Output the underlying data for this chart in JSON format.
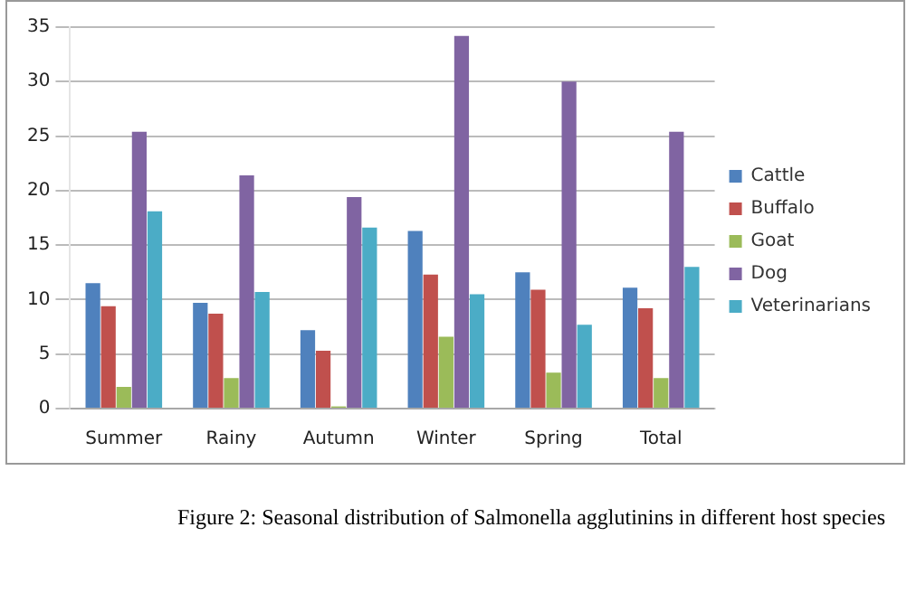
{
  "chart_data": {
    "type": "bar",
    "categories": [
      "Summer",
      "Rainy",
      "Autumn",
      "Winter",
      "Spring",
      "Total"
    ],
    "series": [
      {
        "name": "Cattle",
        "color": "#4f81bd",
        "values": [
          11.5,
          9.7,
          7.2,
          16.3,
          12.5,
          11.1
        ]
      },
      {
        "name": "Buffalo",
        "color": "#c0504d",
        "values": [
          9.4,
          8.7,
          5.3,
          12.3,
          10.9,
          9.2
        ]
      },
      {
        "name": "Goat",
        "color": "#9bbb59",
        "values": [
          2.0,
          2.8,
          0.2,
          6.6,
          3.3,
          2.8
        ]
      },
      {
        "name": "Dog",
        "color": "#8064a2",
        "values": [
          25.4,
          21.4,
          19.4,
          34.2,
          30.0,
          25.4
        ]
      },
      {
        "name": "Veterinarians",
        "color": "#4bacc6",
        "values": [
          18.1,
          10.7,
          16.6,
          10.5,
          7.7,
          13.0
        ]
      }
    ],
    "ylim": [
      0,
      35
    ],
    "yticks": [
      0,
      5,
      10,
      15,
      20,
      25,
      30,
      35
    ],
    "grid": "y",
    "legend": "right",
    "annotations": [
      "Figure 2: Seasonal distribution of Salmonella agglutinins in different host species"
    ]
  }
}
